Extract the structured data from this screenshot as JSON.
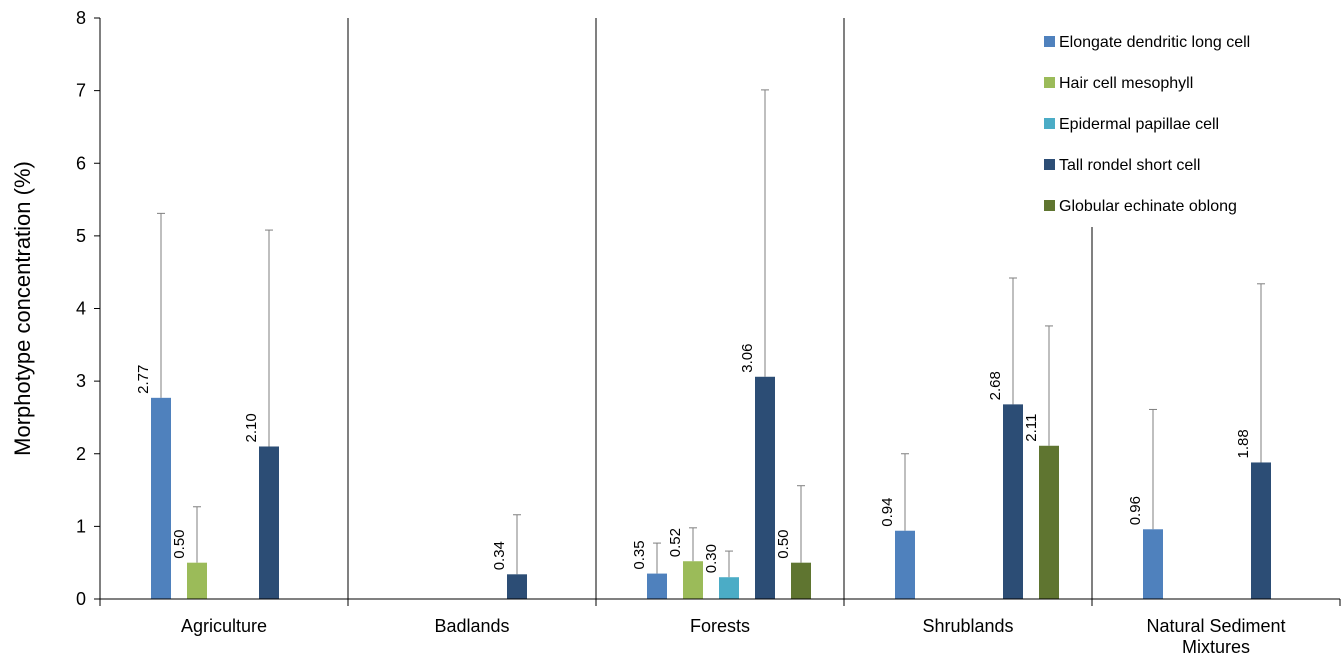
{
  "chart_data": {
    "type": "bar",
    "ylabel": "Morphotype concentration  (%)",
    "ylim": [
      0,
      8
    ],
    "yticks": [
      "0",
      "1",
      "2",
      "3",
      "4",
      "5",
      "6",
      "7",
      "8"
    ],
    "categories": [
      [
        "Agriculture"
      ],
      [
        "Badlands"
      ],
      [
        "Forests"
      ],
      [
        "Shrublands"
      ],
      [
        "Natural Sediment",
        "Mixtures"
      ]
    ],
    "series": [
      {
        "name": "Elongate dendritic long cell",
        "color": "#4f81bd",
        "values": [
          2.77,
          null,
          0.35,
          0.94,
          0.96
        ],
        "labels": [
          "2.77",
          null,
          "0.35",
          "0.94",
          "0.96"
        ],
        "error_upper": [
          5.31,
          null,
          0.77,
          2.0,
          2.61
        ]
      },
      {
        "name": "Hair cell mesophyll",
        "color": "#9bbb59",
        "values": [
          0.5,
          null,
          0.52,
          null,
          null
        ],
        "labels": [
          "0.50",
          null,
          "0.52",
          null,
          null
        ],
        "error_upper": [
          1.27,
          null,
          0.98,
          null,
          null
        ]
      },
      {
        "name": "Epidermal papillae cell",
        "color": "#4bacc6",
        "values": [
          null,
          null,
          0.3,
          null,
          null
        ],
        "labels": [
          null,
          null,
          "0.30",
          null,
          null
        ],
        "error_upper": [
          null,
          null,
          0.66,
          null,
          null
        ]
      },
      {
        "name": "Tall rondel short cell",
        "color": "#2c4d75",
        "values": [
          2.1,
          0.34,
          3.06,
          2.68,
          1.88
        ],
        "labels": [
          "2.10",
          "0.34",
          "3.06",
          "2.68",
          "1.88"
        ],
        "error_upper": [
          5.08,
          1.16,
          7.01,
          4.42,
          4.34
        ]
      },
      {
        "name": "Globular echinate oblong",
        "color": "#5f7530",
        "values": [
          null,
          null,
          0.5,
          2.11,
          null
        ],
        "labels": [
          null,
          null,
          "0.50",
          "2.11",
          null
        ],
        "error_upper": [
          null,
          null,
          1.56,
          3.76,
          null
        ]
      }
    ],
    "grid": false,
    "legend": "top-right"
  }
}
